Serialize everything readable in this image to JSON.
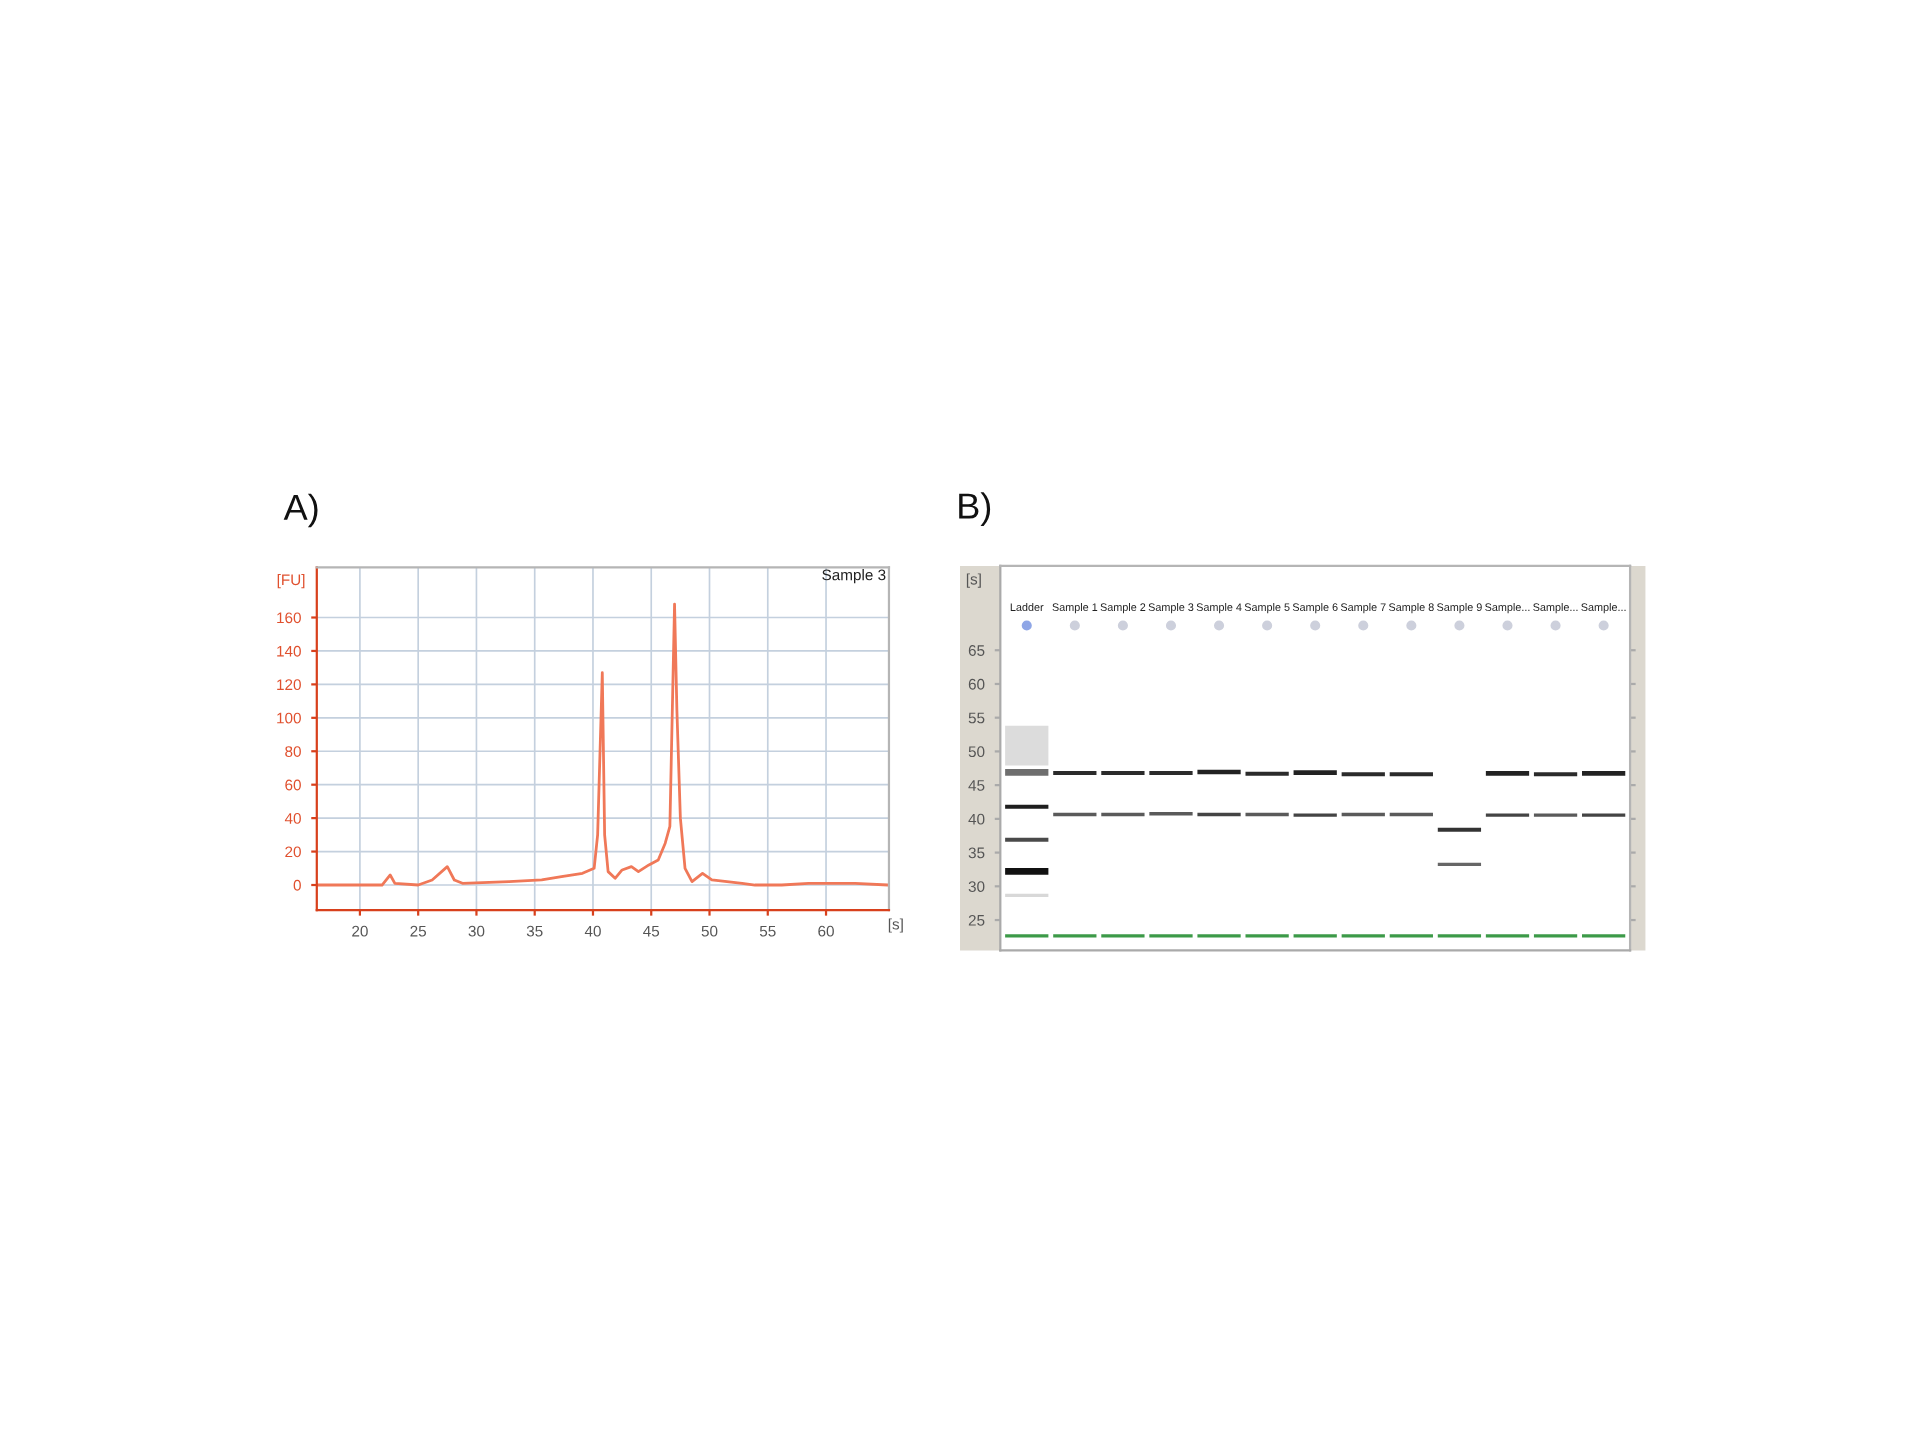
{
  "chart_data": [
    {
      "type": "line",
      "title": "A)",
      "xlabel": "[s]",
      "ylabel": "[FU]",
      "annotations": [
        "Sample 3"
      ],
      "x": [
        16.3,
        21.9,
        22.6,
        23.0,
        25.0,
        26.2,
        27.5,
        28.1,
        28.8,
        32.8,
        35.6,
        37.3,
        39.1,
        40.1,
        40.4,
        40.8,
        41.0,
        41.3,
        41.9,
        42.5,
        43.3,
        43.9,
        44.8,
        45.6,
        46.2,
        46.6,
        47.0,
        47.2,
        47.5,
        47.9,
        48.5,
        49.4,
        50.2,
        52.8,
        53.9,
        56.2,
        58.5,
        62.5,
        65.3
      ],
      "series": [
        {
          "color": "#f07858",
          "values": [
            0,
            0,
            6,
            1,
            0,
            3,
            11,
            3,
            1,
            2,
            3,
            5,
            7,
            10,
            30,
            127,
            30,
            8,
            4,
            9,
            11,
            8,
            12,
            15,
            25,
            35,
            168,
            105,
            40,
            10,
            2,
            7,
            3,
            1,
            0,
            0,
            1,
            1,
            0
          ]
        }
      ],
      "xlim": [
        16.3,
        65.4
      ],
      "ylim": [
        -15,
        190
      ],
      "xticks": [
        20,
        25,
        30,
        35,
        40,
        45,
        50,
        55,
        60
      ],
      "yticks": [
        0,
        20,
        40,
        60,
        80,
        100,
        120,
        140,
        160
      ],
      "grid": true
    },
    {
      "type": "bar",
      "title": "B)",
      "ylabel": "[s]",
      "categories": [
        "Ladder",
        "Sample 1",
        "Sample 2",
        "Sample 3",
        "Sample 4",
        "Sample 5",
        "Sample 6",
        "Sample 7",
        "Sample 8",
        "Sample 9",
        "Sample...",
        "Sample...",
        "Sample..."
      ],
      "series": [
        {
          "color": "#dcdcdc",
          "base": [
            47.9,
            null,
            null,
            null,
            null,
            null,
            null,
            null,
            null,
            null,
            null,
            null,
            null
          ],
          "values": [
            5.9,
            null,
            null,
            null,
            null,
            null,
            null,
            null,
            null,
            null,
            null,
            null,
            null
          ]
        },
        {
          "colors": [
            "#6e6e6e",
            "#2b2b2b",
            "#2b2b2b",
            "#2b2b2b",
            "#222222",
            "#2b2b2b",
            "#222222",
            "#2b2b2b",
            "#2b2b2b",
            "#2b2b2b",
            "#222222",
            "#2b2b2b",
            "#222222"
          ],
          "base": [
            46.4,
            46.5,
            46.5,
            46.5,
            46.6,
            46.4,
            46.5,
            46.3,
            46.3,
            null,
            46.4,
            46.3,
            46.4
          ],
          "values": [
            1.0,
            0.6,
            0.6,
            0.6,
            0.7,
            0.6,
            0.7,
            0.6,
            0.6,
            null,
            0.7,
            0.6,
            0.7
          ]
        },
        {
          "colors": [
            "#1e1e1e",
            "#5a5a5a",
            "#5a5a5a",
            "#5a5a5a",
            "#444444",
            "#5a5a5a",
            "#444444",
            "#5a5a5a",
            "#5a5a5a",
            "#5a5a5a",
            "#444444",
            "#5a5a5a",
            "#444444"
          ],
          "base": [
            41.5,
            40.4,
            40.4,
            40.5,
            40.4,
            40.4,
            40.3,
            40.4,
            40.4,
            null,
            40.3,
            40.3,
            40.3
          ],
          "values": [
            0.6,
            0.5,
            0.5,
            0.5,
            0.5,
            0.5,
            0.5,
            0.5,
            0.5,
            null,
            0.5,
            0.5,
            0.5
          ]
        },
        {
          "colors": [
            "#4a4a4a",
            null,
            null,
            null,
            null,
            null,
            null,
            null,
            null,
            "#333333",
            null,
            null,
            null
          ],
          "base": [
            36.6,
            null,
            null,
            null,
            null,
            null,
            null,
            null,
            null,
            38.1,
            null,
            null,
            null
          ],
          "values": [
            0.6,
            null,
            null,
            null,
            null,
            null,
            null,
            null,
            null,
            0.6,
            null,
            null,
            null
          ]
        },
        {
          "colors": [
            "#111111",
            null,
            null,
            null,
            null,
            null,
            null,
            null,
            null,
            "#666666",
            null,
            null,
            null
          ],
          "base": [
            31.7,
            null,
            null,
            null,
            null,
            null,
            null,
            null,
            null,
            33.0,
            null,
            null,
            null
          ],
          "values": [
            1.0,
            null,
            null,
            null,
            null,
            null,
            null,
            null,
            null,
            0.5,
            null,
            null,
            null
          ]
        },
        {
          "color": "#d8d8d8",
          "base": [
            28.4,
            null,
            null,
            null,
            null,
            null,
            null,
            null,
            null,
            null,
            null,
            null,
            null
          ],
          "values": [
            0.5,
            null,
            null,
            null,
            null,
            null,
            null,
            null,
            null,
            null,
            null,
            null,
            null
          ]
        },
        {
          "color": "#3c9a48",
          "base": [
            22.4,
            22.4,
            22.4,
            22.4,
            22.4,
            22.4,
            22.4,
            22.4,
            22.4,
            22.4,
            22.4,
            22.4,
            22.4
          ],
          "values": [
            0.5,
            0.5,
            0.5,
            0.5,
            0.5,
            0.5,
            0.5,
            0.5,
            0.5,
            0.5,
            0.5,
            0.5,
            0.5
          ]
        }
      ],
      "ylim": [
        20.5,
        77.5
      ],
      "yticks": [
        25,
        30,
        35,
        40,
        45,
        50,
        55,
        60,
        65
      ]
    }
  ]
}
